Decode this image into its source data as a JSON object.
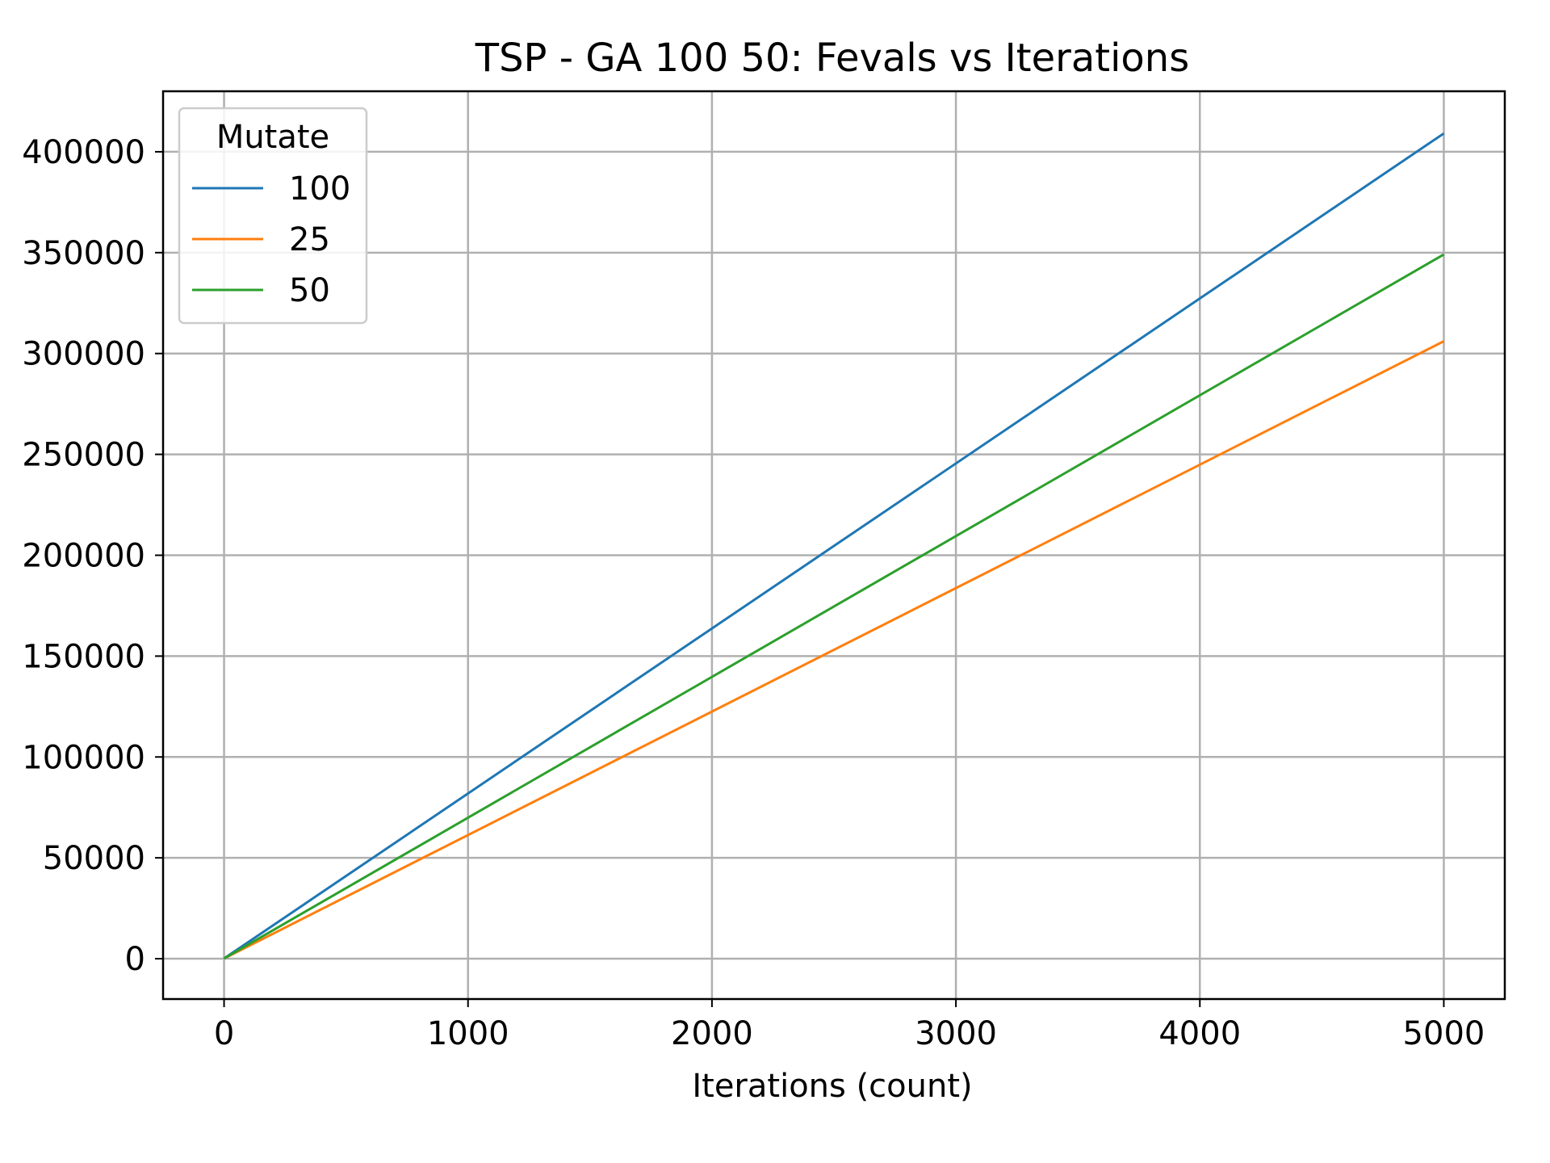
{
  "chart_data": {
    "type": "line",
    "title": "TSP - GA 100 50: Fevals vs Iterations",
    "xlabel": "Iterations (count)",
    "ylabel": "",
    "xlim": [
      -250,
      5250
    ],
    "ylim": [
      -20000,
      430000
    ],
    "xticks": [
      0,
      1000,
      2000,
      3000,
      4000,
      5000
    ],
    "yticks": [
      0,
      50000,
      100000,
      150000,
      200000,
      250000,
      300000,
      350000,
      400000
    ],
    "grid": true,
    "legend": {
      "title": "Mutate",
      "placement": "top-left"
    },
    "x": [
      0,
      5000
    ],
    "series": [
      {
        "name": "100",
        "color": "#1f77b4",
        "values": [
          100,
          409100
        ]
      },
      {
        "name": "25",
        "color": "#ff7f0e",
        "values": [
          100,
          306100
        ]
      },
      {
        "name": "50",
        "color": "#2ca02c",
        "values": [
          100,
          349100
        ]
      }
    ]
  }
}
